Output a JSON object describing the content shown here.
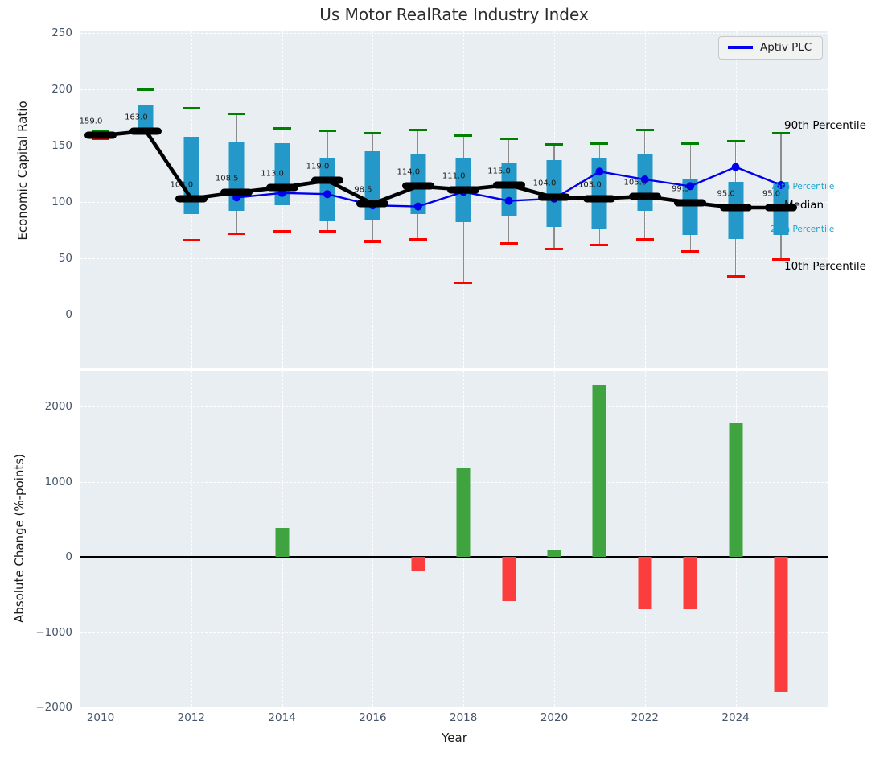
{
  "chart_data": [
    {
      "type": "boxplot+line",
      "title": "Us Motor RealRate Industry Index",
      "ylabel": "Economic Capital Ratio",
      "ylim": [
        -48,
        252
      ],
      "grid": true,
      "ytick_labels": [
        "250",
        "200",
        "150",
        "100",
        "50",
        "0"
      ],
      "ytick_values": [
        250,
        200,
        150,
        100,
        50,
        0
      ],
      "xtick_values": [
        2010,
        2012,
        2014,
        2016,
        2018,
        2020,
        2022,
        2024
      ],
      "years": [
        2010,
        2011,
        2012,
        2013,
        2014,
        2015,
        2016,
        2017,
        2018,
        2019,
        2020,
        2021,
        2022,
        2023,
        2024,
        2025
      ],
      "median": [
        159.0,
        163.0,
        103.0,
        108.5,
        113.0,
        119.0,
        98.5,
        114.0,
        111.0,
        115.0,
        104.0,
        103.0,
        105.0,
        99.5,
        95.0,
        95.0
      ],
      "median_labels": [
        "159.0",
        "163.0",
        "103.0",
        "108.5",
        "113.0",
        "119.0",
        "98.5",
        "114.0",
        "111.0",
        "115.0",
        "104.0",
        "103.0",
        "105.0",
        "99.5",
        "95.0",
        "95.0"
      ],
      "p90": [
        163,
        200,
        183,
        178,
        165,
        163,
        161,
        164,
        159,
        156,
        151,
        152,
        164,
        152,
        154,
        161
      ],
      "p75": [
        161,
        186,
        158,
        153,
        152,
        139,
        145,
        142,
        139,
        135,
        137,
        139,
        142,
        121,
        118,
        118
      ],
      "p25": [
        157,
        163,
        89,
        92,
        97,
        83,
        84,
        89,
        82,
        87,
        78,
        76,
        92,
        71,
        67,
        71
      ],
      "p10": [
        156,
        161,
        66,
        72,
        74,
        74,
        65,
        67,
        28,
        63,
        58,
        62,
        67,
        56,
        34,
        49
      ],
      "series": [
        {
          "name": "Aptiv PLC",
          "x": [
            2013,
            2014,
            2015,
            2016,
            2017,
            2018,
            2019,
            2020,
            2021,
            2022,
            2023,
            2024,
            2025
          ],
          "values": [
            104,
            108,
            107,
            97,
            96,
            109,
            101,
            103,
            127,
            120,
            114,
            131,
            115
          ]
        }
      ],
      "legend": {
        "label": "Aptiv PLC",
        "position": "top-right"
      },
      "annotations": [
        {
          "text": "90th Percentile",
          "color": "#000000",
          "y_value": 168,
          "big": true
        },
        {
          "text": "75th Percentile",
          "color": "#1ba3cc",
          "y_value": 113.5,
          "big": false
        },
        {
          "text": "Median",
          "color": "#000000",
          "y_value": 97,
          "big": true
        },
        {
          "text": "25th Percentile",
          "color": "#1ba3cc",
          "y_value": 76,
          "big": false
        },
        {
          "text": "10th Percentile",
          "color": "#000000",
          "y_value": 43,
          "big": true
        }
      ]
    },
    {
      "type": "bar",
      "ylabel": "Absolute Change (%-points)",
      "xlabel": "Year",
      "ylim": [
        -2050,
        2480
      ],
      "grid": true,
      "ytick_labels": [
        "2000",
        "1000",
        "0",
        "−1000",
        "−2000"
      ],
      "ytick_values": [
        2000,
        1000,
        0,
        -1000,
        -2000
      ],
      "xtick_labels": [
        "2010",
        "2012",
        "2014",
        "2016",
        "2018",
        "2020",
        "2022",
        "2024"
      ],
      "xtick_values": [
        2010,
        2012,
        2014,
        2016,
        2018,
        2020,
        2022,
        2024
      ],
      "years": [
        2010,
        2011,
        2012,
        2013,
        2014,
        2015,
        2016,
        2017,
        2018,
        2019,
        2020,
        2021,
        2022,
        2023,
        2024,
        2025
      ],
      "values": [
        null,
        null,
        null,
        null,
        390,
        null,
        null,
        -190,
        1180,
        -590,
        90,
        2290,
        -690,
        -700,
        1780,
        -1800
      ]
    }
  ],
  "colors": {
    "box": "#2499c9",
    "whisker": "#8d8d8d",
    "p90_cap": "#008000",
    "p10_cap": "#ff0000",
    "median_line": "#000000",
    "aptiv_line": "#0000ee",
    "bar_positive": "#3fa33f",
    "bar_negative": "#fb3d3d",
    "plot_bg": "#e9eef2",
    "tick_text": "#44546a",
    "annotation_cyan": "#1ba3cc"
  }
}
